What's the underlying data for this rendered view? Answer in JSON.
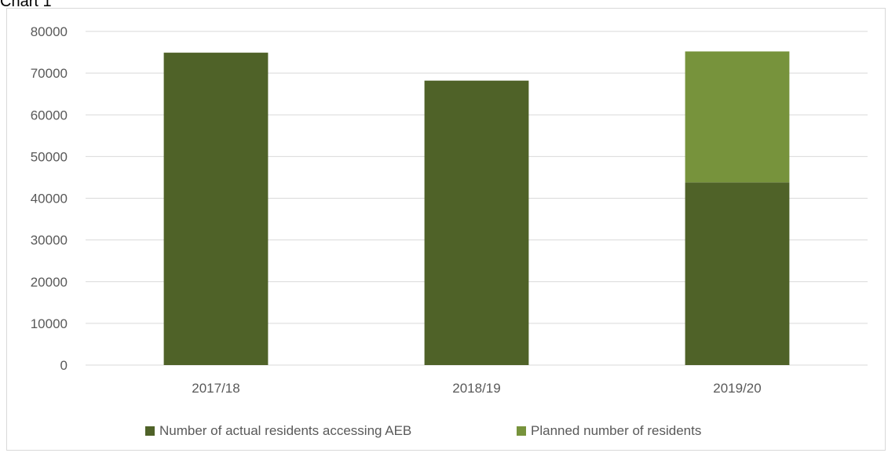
{
  "page": {
    "heading": "Chart 1"
  },
  "colors": {
    "actual": "#4f6228",
    "planned": "#77933c",
    "grid": "#d9d9d9",
    "text": "#595959"
  },
  "chart_data": {
    "type": "bar",
    "stacked": true,
    "title": "",
    "xlabel": "",
    "ylabel": "",
    "categories": [
      "2017/18",
      "2018/19",
      "2019/20"
    ],
    "ylim": [
      0,
      80000
    ],
    "yticks": [
      "0",
      "10000",
      "20000",
      "30000",
      "40000",
      "50000",
      "60000",
      "70000",
      "80000"
    ],
    "grid": true,
    "legend_position": "bottom",
    "series": [
      {
        "name": "Number of actual residents accessing AEB",
        "values": [
          74900,
          68200,
          43800
        ],
        "color": "#4f6228"
      },
      {
        "name": "Planned number of residents",
        "values": [
          0,
          0,
          31400
        ],
        "color": "#77933c"
      }
    ]
  }
}
